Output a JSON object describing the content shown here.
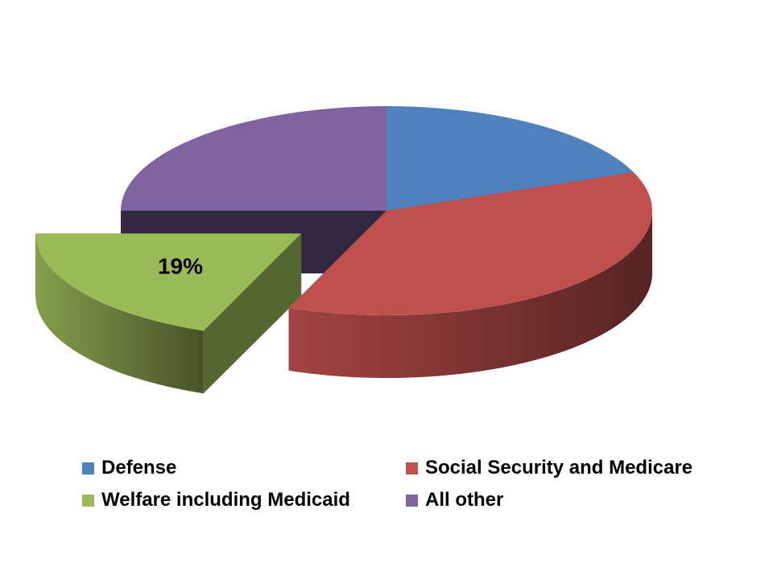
{
  "chart_data": {
    "type": "pie",
    "style": "3d exploded",
    "slices": [
      {
        "name": "Defense",
        "value": 19,
        "color": "#4F81BD"
      },
      {
        "name": "Social Security and Medicare",
        "value": 37,
        "color": "#C0504D"
      },
      {
        "name": "Welfare including Medicaid",
        "value": 19,
        "color": "#9BBB59",
        "exploded": true
      },
      {
        "name": "All other",
        "value": 25,
        "color": "#8064A2"
      }
    ],
    "data_labels": [
      {
        "slice": "Welfare including Medicaid",
        "text": "19%"
      }
    ],
    "legend_position": "bottom"
  }
}
